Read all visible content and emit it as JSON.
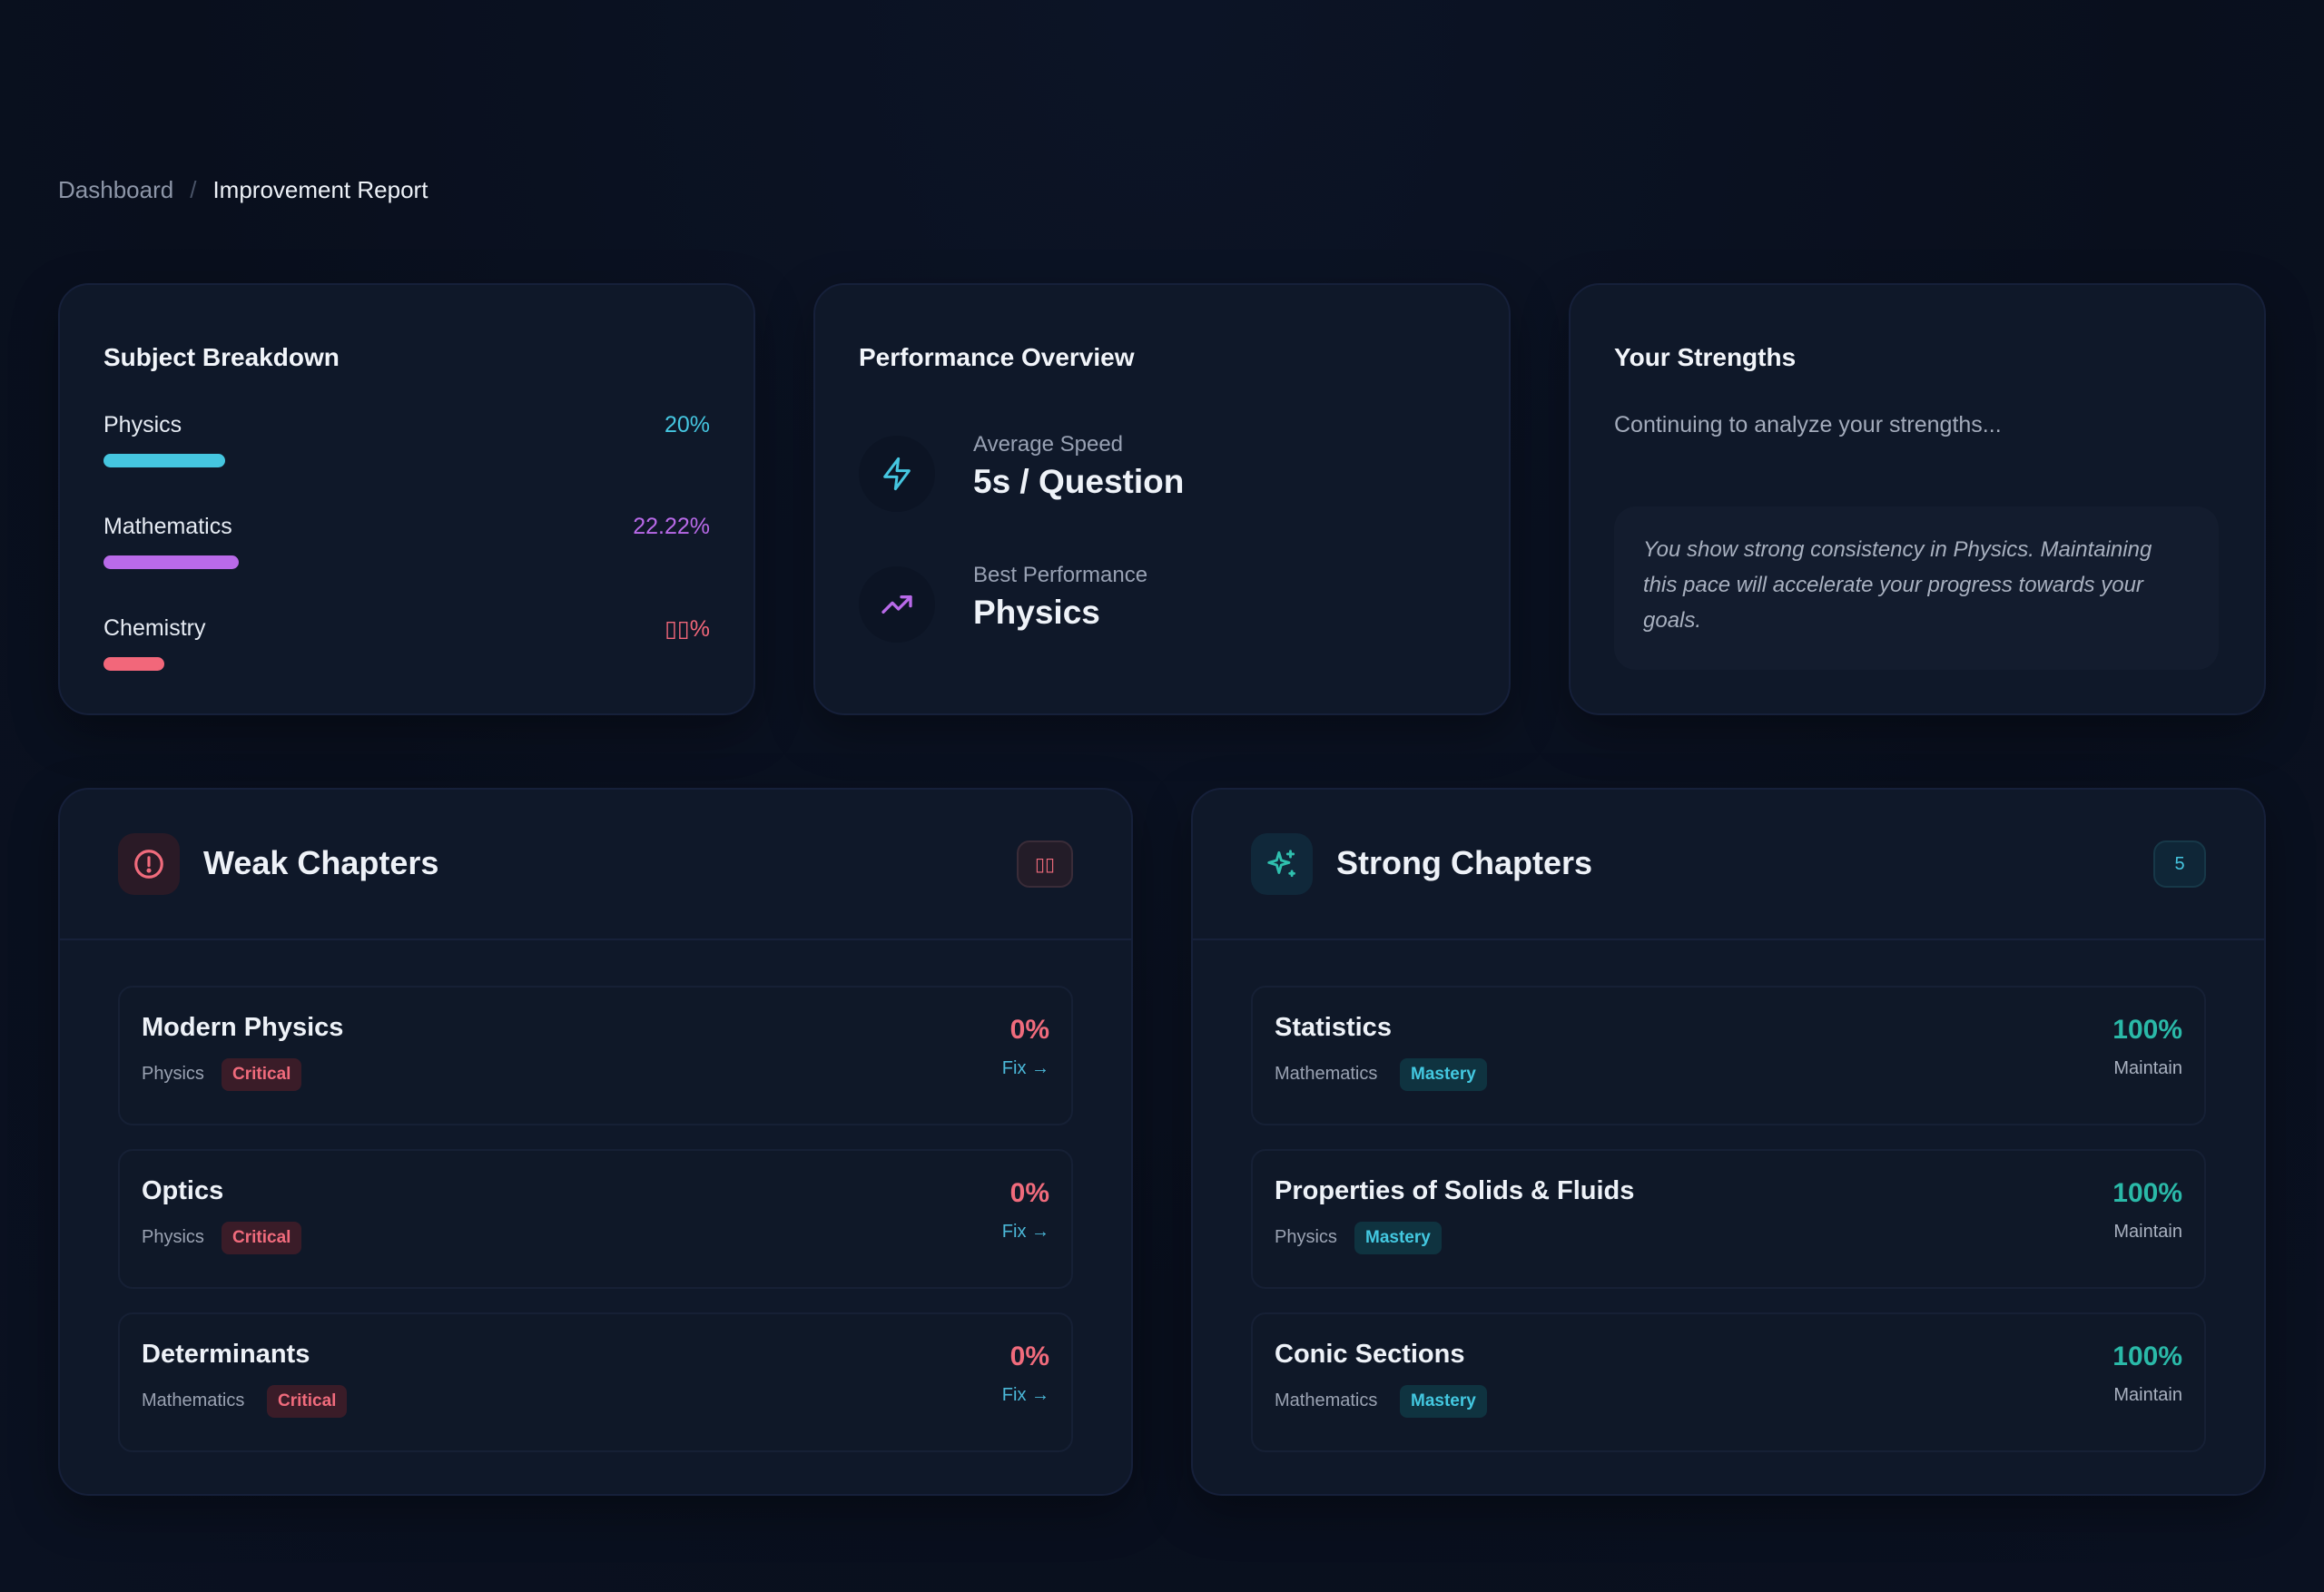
{
  "breadcrumb": {
    "home": "Dashboard",
    "separator": "/",
    "current": "Improvement Report"
  },
  "subject_breakdown": {
    "title": "Subject Breakdown",
    "items": [
      {
        "name": "Physics",
        "percent_label": "20%",
        "progress": 0.2,
        "color": "#45c6e0"
      },
      {
        "name": "Mathematics",
        "percent_label": "22.22%",
        "progress": 0.2222,
        "color": "#b96ae9"
      },
      {
        "name": "Chemistry",
        "percent_label": "▯▯%",
        "progress": 0.1,
        "color": "#f2677a"
      }
    ]
  },
  "performance": {
    "title": "Performance Overview",
    "metrics": [
      {
        "label": "Average Speed",
        "value": "5s / Question",
        "icon": "lightning-icon",
        "color": "#45c6e0"
      },
      {
        "label": "Best Performance",
        "value": "Physics",
        "icon": "trending-up-icon",
        "color": "#b96ae9"
      }
    ]
  },
  "strengths": {
    "title": "Your Strengths",
    "subtitle": "Continuing to analyze your strengths...",
    "quote": "You show strong consistency in Physics. Maintaining this pace will accelerate your progress towards your goals."
  },
  "weak_chapters": {
    "title": "Weak Chapters",
    "icon": "alert-circle-icon",
    "count": "▯▯",
    "items": [
      {
        "name": "Modern Physics",
        "subject": "Physics",
        "badge": "Critical",
        "percent": "0%",
        "action": "Fix →"
      },
      {
        "name": "Optics",
        "subject": "Physics",
        "badge": "Critical",
        "percent": "0%",
        "action": "Fix →"
      },
      {
        "name": "Determinants",
        "subject": "Mathematics",
        "badge": "Critical",
        "percent": "0%",
        "action": "Fix →"
      }
    ]
  },
  "strong_chapters": {
    "title": "Strong Chapters",
    "icon": "sparkle-icon",
    "count": "5",
    "items": [
      {
        "name": "Statistics",
        "subject": "Mathematics",
        "badge": "Mastery",
        "percent": "100%",
        "action": "Maintain"
      },
      {
        "name": "Properties of Solids & Fluids",
        "subject": "Physics",
        "badge": "Mastery",
        "percent": "100%",
        "action": "Maintain"
      },
      {
        "name": "Conic Sections",
        "subject": "Mathematics",
        "badge": "Mastery",
        "percent": "100%",
        "action": "Maintain"
      }
    ]
  }
}
